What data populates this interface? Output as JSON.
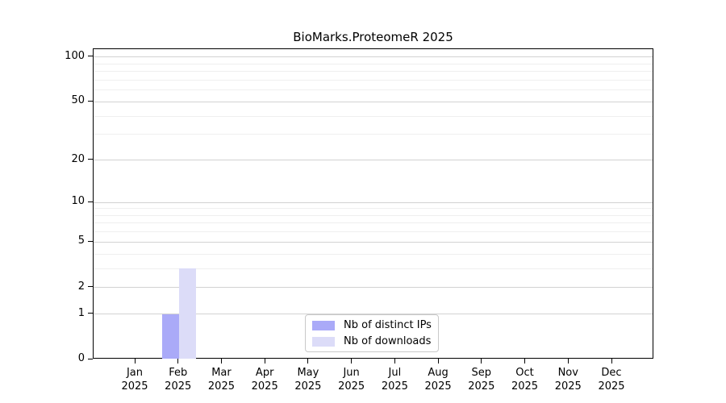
{
  "title": "BioMarks.ProteomeR 2025",
  "colors": {
    "background": "#ffffff",
    "axis": "#000000",
    "text": "#000000",
    "grid_major": "#d2d2d2",
    "grid_minor": "#efefef",
    "legend_border": "#c9c9c9",
    "bar_distinct_ips": "#aaaaf8",
    "bar_downloads": "#dcdcf8"
  },
  "legend": {
    "items": [
      {
        "label": "Nb of distinct IPs",
        "color": "#aaaaf8"
      },
      {
        "label": "Nb of downloads",
        "color": "#dcdcf8"
      }
    ]
  },
  "chart_data": {
    "type": "bar",
    "title": "BioMarks.ProteomeR 2025",
    "categories": [
      "Jan",
      "Feb",
      "Mar",
      "Apr",
      "May",
      "Jun",
      "Jul",
      "Aug",
      "Sep",
      "Oct",
      "Nov",
      "Dec"
    ],
    "category_year": "2025",
    "series": [
      {
        "name": "Nb of distinct IPs",
        "color": "#aaaaf8",
        "values": [
          0,
          1,
          0,
          0,
          0,
          0,
          0,
          0,
          0,
          0,
          0,
          0
        ]
      },
      {
        "name": "Nb of downloads",
        "color": "#dcdcf8",
        "values": [
          0,
          3,
          0,
          0,
          0,
          0,
          0,
          0,
          0,
          0,
          0,
          0
        ]
      }
    ],
    "xlabel": "",
    "ylabel": "",
    "yscale": "log1p",
    "ylim": [
      0,
      113
    ],
    "y_ticks": [
      0,
      1,
      2,
      5,
      10,
      20,
      50,
      100
    ],
    "y_minor_gridlines": [
      3,
      4,
      6,
      7,
      8,
      9,
      30,
      40,
      60,
      70,
      80,
      90
    ],
    "grid": true,
    "legend_position": "lower center"
  }
}
